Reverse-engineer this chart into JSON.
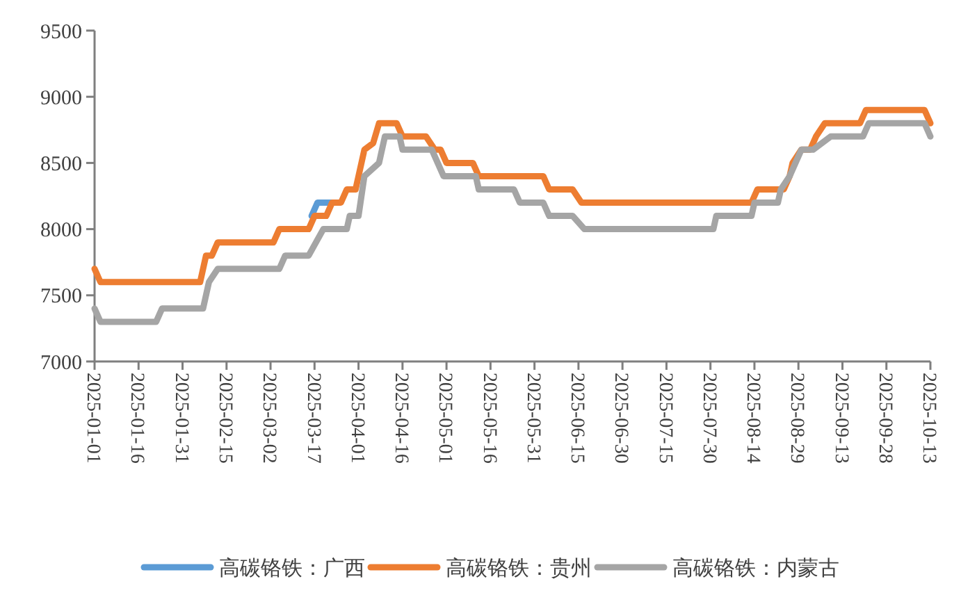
{
  "chart_data": {
    "type": "line",
    "legend": "bottom",
    "line_style": "solid",
    "marker": "none",
    "xlim": [
      "2025-01-01",
      "2025-10-13"
    ],
    "xticks": [
      "2025-01-01",
      "2025-01-16",
      "2025-01-31",
      "2025-02-15",
      "2025-03-02",
      "2025-03-17",
      "2025-04-01",
      "2025-04-16",
      "2025-05-01",
      "2025-05-16",
      "2025-05-31",
      "2025-06-15",
      "2025-06-30",
      "2025-07-15",
      "2025-07-30",
      "2025-08-14",
      "2025-08-29",
      "2025-09-13",
      "2025-09-28",
      "2025-10-13"
    ],
    "ylim": [
      7000,
      9500
    ],
    "yticks": [
      7000,
      7500,
      8000,
      8500,
      9000,
      9500
    ],
    "series": [
      {
        "name": "高碳铬铁：广西",
        "color": "#5b9bd5",
        "x": [
          "2025-03-16",
          "2025-03-18",
          "2025-03-23"
        ],
        "values": [
          8100,
          8200,
          8200
        ]
      },
      {
        "name": "高碳铬铁：贵州",
        "color": "#ed7d31",
        "x": [
          "2025-01-01",
          "2025-01-03",
          "2025-02-06",
          "2025-02-08",
          "2025-02-10",
          "2025-02-12",
          "2025-03-03",
          "2025-03-05",
          "2025-03-15",
          "2025-03-17",
          "2025-03-21",
          "2025-03-23",
          "2025-03-26",
          "2025-03-28",
          "2025-03-31",
          "2025-04-03",
          "2025-04-06",
          "2025-04-08",
          "2025-04-14",
          "2025-04-16",
          "2025-04-24",
          "2025-04-27",
          "2025-04-29",
          "2025-05-01",
          "2025-05-10",
          "2025-05-12",
          "2025-06-03",
          "2025-06-05",
          "2025-06-13",
          "2025-06-16",
          "2025-08-13",
          "2025-08-15",
          "2025-08-24",
          "2025-08-26",
          "2025-08-27",
          "2025-08-30",
          "2025-09-02",
          "2025-09-04",
          "2025-09-07",
          "2025-09-19",
          "2025-09-21",
          "2025-10-11",
          "2025-10-13"
        ],
        "values": [
          7700,
          7600,
          7600,
          7800,
          7800,
          7900,
          7900,
          8000,
          8000,
          8100,
          8100,
          8200,
          8200,
          8300,
          8300,
          8600,
          8650,
          8800,
          8800,
          8700,
          8700,
          8600,
          8600,
          8500,
          8500,
          8400,
          8400,
          8300,
          8300,
          8200,
          8200,
          8300,
          8300,
          8400,
          8500,
          8600,
          8600,
          8700,
          8800,
          8800,
          8900,
          8900,
          8800
        ]
      },
      {
        "name": "高碳铬铁：内蒙古",
        "color": "#a5a5a5",
        "x": [
          "2025-01-01",
          "2025-01-03",
          "2025-01-22",
          "2025-01-24",
          "2025-02-07",
          "2025-02-09",
          "2025-02-12",
          "2025-03-05",
          "2025-03-07",
          "2025-03-15",
          "2025-03-20",
          "2025-03-28",
          "2025-03-29",
          "2025-04-01",
          "2025-04-03",
          "2025-04-08",
          "2025-04-10",
          "2025-04-15",
          "2025-04-16",
          "2025-04-26",
          "2025-04-28",
          "2025-04-30",
          "2025-05-11",
          "2025-05-12",
          "2025-05-24",
          "2025-05-26",
          "2025-06-03",
          "2025-06-05",
          "2025-06-13",
          "2025-06-17",
          "2025-07-31",
          "2025-08-01",
          "2025-08-13",
          "2025-08-14",
          "2025-08-22",
          "2025-08-23",
          "2025-08-26",
          "2025-08-28",
          "2025-08-30",
          "2025-09-03",
          "2025-09-09",
          "2025-09-20",
          "2025-09-22",
          "2025-10-11",
          "2025-10-13"
        ],
        "values": [
          7400,
          7300,
          7300,
          7400,
          7400,
          7600,
          7700,
          7700,
          7800,
          7800,
          8000,
          8000,
          8100,
          8100,
          8400,
          8500,
          8700,
          8700,
          8600,
          8600,
          8500,
          8400,
          8400,
          8300,
          8300,
          8200,
          8200,
          8100,
          8100,
          8000,
          8000,
          8100,
          8100,
          8200,
          8200,
          8300,
          8400,
          8500,
          8600,
          8600,
          8700,
          8700,
          8800,
          8800,
          8700
        ]
      }
    ]
  }
}
